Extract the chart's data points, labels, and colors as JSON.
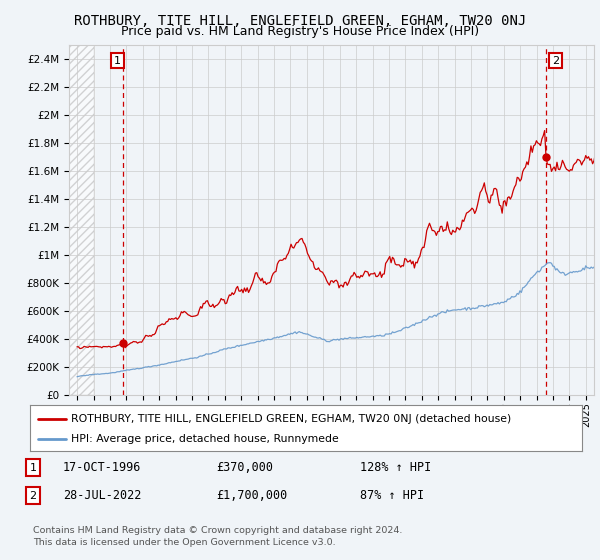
{
  "title": "ROTHBURY, TITE HILL, ENGLEFIELD GREEN, EGHAM, TW20 0NJ",
  "subtitle": "Price paid vs. HM Land Registry's House Price Index (HPI)",
  "ylabel_ticks": [
    "£0",
    "£200K",
    "£400K",
    "£600K",
    "£800K",
    "£1M",
    "£1.2M",
    "£1.4M",
    "£1.6M",
    "£1.8M",
    "£2M",
    "£2.2M",
    "£2.4M"
  ],
  "ylabel_values": [
    0,
    200000,
    400000,
    600000,
    800000,
    1000000,
    1200000,
    1400000,
    1600000,
    1800000,
    2000000,
    2200000,
    2400000
  ],
  "ylim": [
    0,
    2500000
  ],
  "xlim_start": 1993.5,
  "xlim_end": 2025.5,
  "sale1_x": 1996.8,
  "sale1_y": 370000,
  "sale2_x": 2022.55,
  "sale2_y": 1700000,
  "legend_line1": "ROTHBURY, TITE HILL, ENGLEFIELD GREEN, EGHAM, TW20 0NJ (detached house)",
  "legend_line2": "HPI: Average price, detached house, Runnymede",
  "annotation1_date": "17-OCT-1996",
  "annotation1_price": "£370,000",
  "annotation1_hpi": "128% ↑ HPI",
  "annotation2_date": "28-JUL-2022",
  "annotation2_price": "£1,700,000",
  "annotation2_hpi": "87% ↑ HPI",
  "footer": "Contains HM Land Registry data © Crown copyright and database right 2024.\nThis data is licensed under the Open Government Licence v3.0.",
  "red_color": "#cc0000",
  "blue_color": "#6699cc",
  "grid_color": "#cccccc",
  "bg_color": "#f0f4f8"
}
